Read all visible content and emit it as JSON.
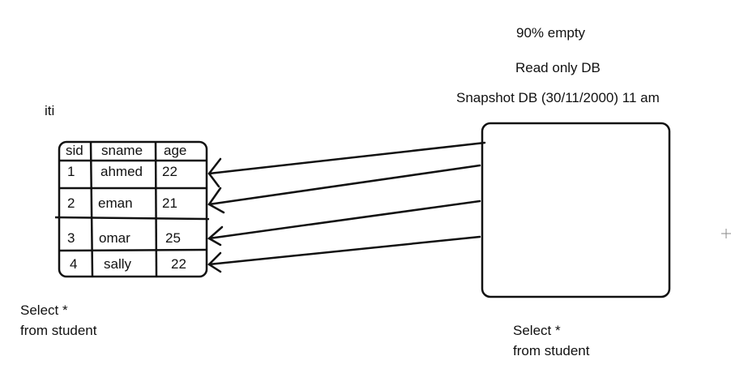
{
  "labels": {
    "iti": "iti",
    "left_query_line1": "Select *",
    "left_query_line2": "from student",
    "right_query_line1": "Select *",
    "right_query_line2": "from student",
    "note_empty": "90% empty",
    "note_readonly": "Read only DB",
    "note_snapshot": "Snapshot DB (30/11/2000)  11 am"
  },
  "table": {
    "headers": [
      "sid",
      "sname",
      "age"
    ],
    "rows": [
      [
        "1",
        "ahmed",
        "22"
      ],
      [
        "2",
        "eman",
        "21"
      ],
      [
        "3",
        "omar",
        "25"
      ],
      [
        "4",
        "sally",
        "22"
      ]
    ]
  }
}
